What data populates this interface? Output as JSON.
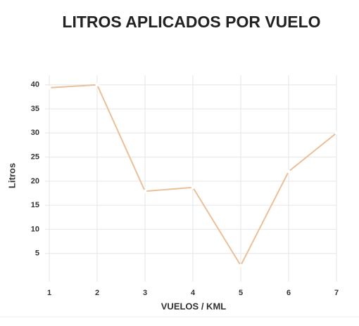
{
  "chart_data": {
    "type": "line",
    "title": "LITROS APLICADOS POR VUELO",
    "x_label": "VUELOS / KML",
    "y_label": "Litros",
    "x": [
      1,
      2,
      3,
      4,
      5,
      6,
      7
    ],
    "series": [
      {
        "name": "Litros",
        "color": "#ebbf98",
        "values": [
          39.4,
          40,
          17.9,
          18.7,
          2.5,
          22,
          30
        ]
      }
    ],
    "xlim": [
      1,
      7
    ],
    "xticks": [
      1,
      2,
      3,
      4,
      5,
      6,
      7
    ],
    "ylim": [
      0,
      42
    ],
    "yticks": [
      5,
      10,
      15,
      20,
      25,
      30,
      35,
      40
    ],
    "grid": true
  }
}
